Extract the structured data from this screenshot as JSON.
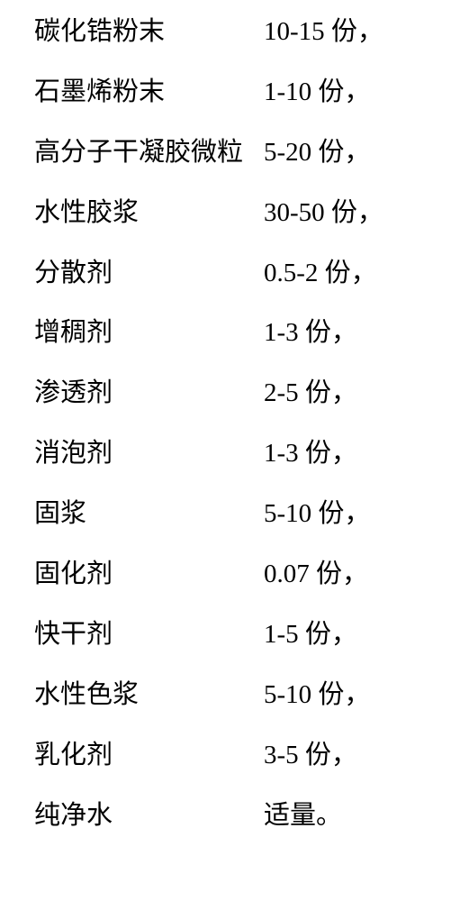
{
  "text_color": "#000000",
  "background_color": "#ffffff",
  "font_size": 29,
  "rows": [
    {
      "ingredient": "碳化锆粉末",
      "amount": "10-15 份，"
    },
    {
      "ingredient": "石墨烯粉末",
      "amount": "1-10 份，"
    },
    {
      "ingredient": "高分子干凝胶微粒",
      "amount": "5-20 份，"
    },
    {
      "ingredient": "水性胶浆",
      "amount": "30-50 份，"
    },
    {
      "ingredient": "分散剂",
      "amount": "0.5-2 份，"
    },
    {
      "ingredient": "增稠剂",
      "amount": "1-3 份，"
    },
    {
      "ingredient": "渗透剂",
      "amount": "2-5 份，"
    },
    {
      "ingredient": "消泡剂",
      "amount": "1-3 份，"
    },
    {
      "ingredient": "固浆",
      "amount": "5-10 份，"
    },
    {
      "ingredient": "固化剂",
      "amount": "0.07 份，"
    },
    {
      "ingredient": "快干剂",
      "amount": "1-5 份，"
    },
    {
      "ingredient": "水性色浆",
      "amount": "5-10 份，"
    },
    {
      "ingredient": "乳化剂",
      "amount": "3-5 份，"
    },
    {
      "ingredient": "纯净水",
      "amount": "适量。"
    }
  ]
}
